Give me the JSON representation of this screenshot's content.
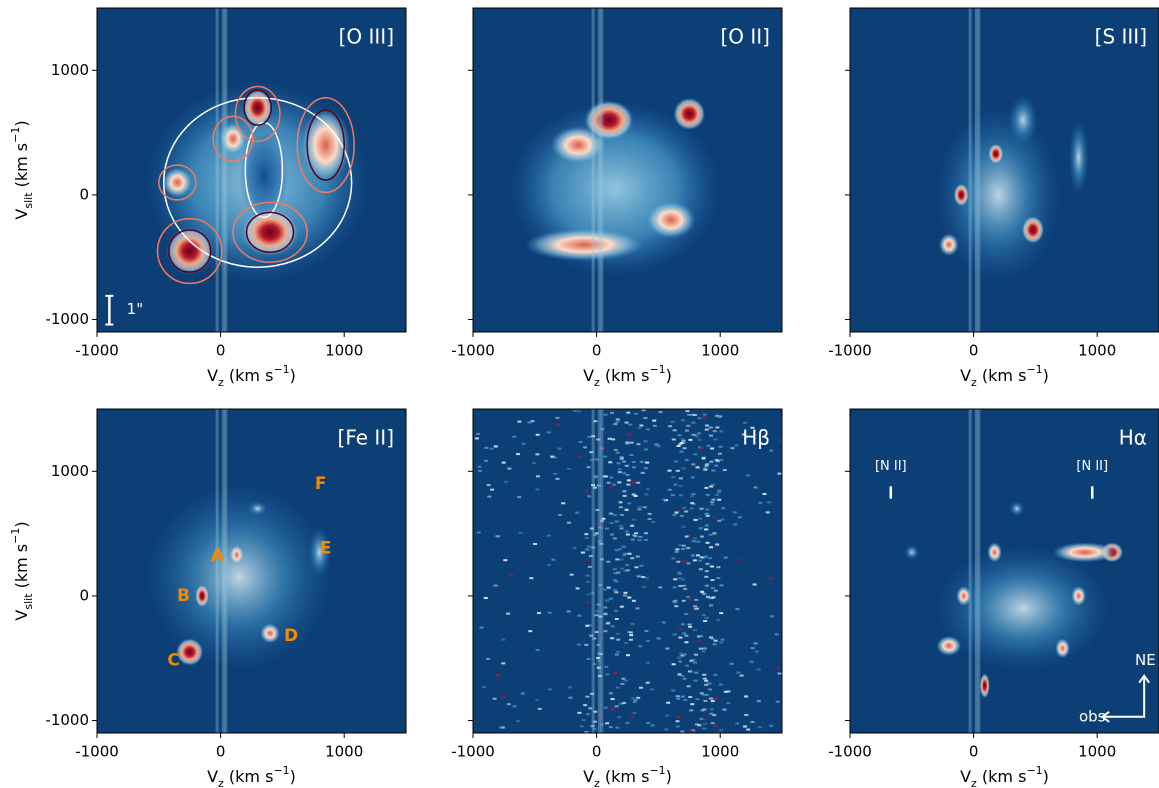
{
  "chart_data": [
    {
      "type": "image",
      "title": "[O III]",
      "xlabel": [
        "V",
        "z",
        " (km s",
        "−1",
        ")"
      ],
      "ylabel": [
        "V",
        "slit",
        " (km s",
        "−1",
        ")"
      ],
      "xlim": [
        -1000,
        1500
      ],
      "ylim": [
        -1100,
        1500
      ],
      "xticks": [
        -1000,
        0,
        1000
      ],
      "yticks": [
        -1000,
        0,
        1000
      ],
      "ytick_labels": true,
      "annotations": [
        "1\""
      ]
    },
    {
      "type": "image",
      "title": "[O II]",
      "xlabel": [
        "V",
        "z",
        " (km s",
        "−1",
        ")"
      ],
      "xlim": [
        -1000,
        1500
      ],
      "ylim": [
        -1100,
        1500
      ],
      "xticks": [
        -1000,
        0,
        1000
      ],
      "yticks": [
        -1000,
        0,
        1000
      ],
      "ytick_labels": false,
      "annotations": []
    },
    {
      "type": "image",
      "title": "[S III]",
      "xlabel": [
        "V",
        "z",
        " (km s",
        "−1",
        ")"
      ],
      "xlim": [
        -1000,
        1500
      ],
      "ylim": [
        -1100,
        1500
      ],
      "xticks": [
        -1000,
        0,
        1000
      ],
      "yticks": [
        -1000,
        0,
        1000
      ],
      "ytick_labels": false,
      "annotations": []
    },
    {
      "type": "image",
      "title": "[Fe II]",
      "xlabel": [
        "V",
        "z",
        " (km s",
        "−1",
        ")"
      ],
      "ylabel": [
        "V",
        "slit",
        " (km s",
        "−1",
        ")"
      ],
      "xlim": [
        -1000,
        1500
      ],
      "ylim": [
        -1100,
        1500
      ],
      "xticks": [
        -1000,
        0,
        1000
      ],
      "yticks": [
        -1000,
        0,
        1000
      ],
      "ytick_labels": true,
      "annotations": [
        "A",
        "B",
        "C",
        "D",
        "E",
        "F"
      ]
    },
    {
      "type": "image",
      "title": "Hβ",
      "xlabel": [
        "V",
        "z",
        " (km s",
        "−1",
        ")"
      ],
      "xlim": [
        -1000,
        1500
      ],
      "ylim": [
        -1100,
        1500
      ],
      "xticks": [
        -1000,
        0,
        1000
      ],
      "yticks": [
        -1000,
        0,
        1000
      ],
      "ytick_labels": false,
      "annotations": []
    },
    {
      "type": "image",
      "title": "Hα",
      "xlabel": [
        "V",
        "z",
        " (km s",
        "−1",
        ")"
      ],
      "xlim": [
        -1000,
        1500
      ],
      "ylim": [
        -1100,
        1500
      ],
      "xticks": [
        -1000,
        0,
        1000
      ],
      "yticks": [
        -1000,
        0,
        1000
      ],
      "ytick_labels": false,
      "annotations": [
        "[N II]",
        "[N II]",
        "NE",
        "obs"
      ]
    }
  ]
}
